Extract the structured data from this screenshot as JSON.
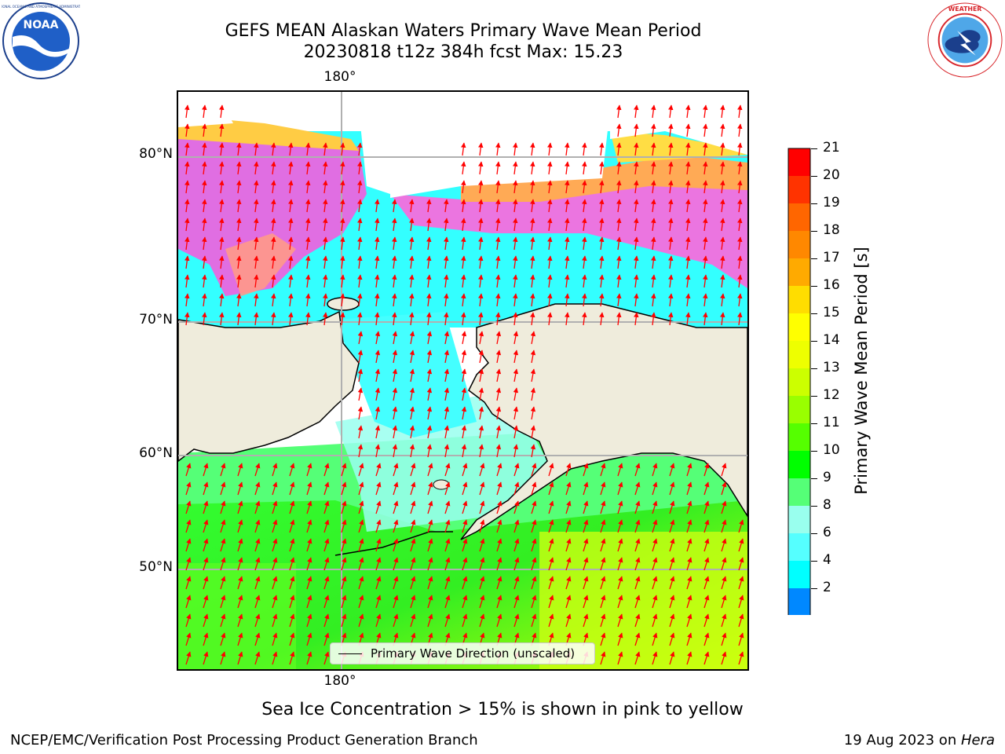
{
  "title": {
    "line1": "GEFS MEAN Alaskan Waters Primary Wave Mean Period",
    "line2": "20230818 t12z 384h fcst   Max: 15.23"
  },
  "logos": {
    "left": "noaa-logo",
    "left_text": "NOAA",
    "right": "nws-logo"
  },
  "map": {
    "lon_label_top": "180°",
    "lon_label_bottom": "180°",
    "lat_labels": [
      "80°N",
      "70°N",
      "60°N",
      "50°N"
    ],
    "legend_label": "Primary Wave Direction (unscaled)",
    "land_color": "#efecdc",
    "arrow_color": "#ff0000"
  },
  "chart_data": {
    "type": "heatmap",
    "field": "Primary Wave Mean Period",
    "units": "s",
    "max": 15.23,
    "colorbar": {
      "label": "Primary Wave Mean Period [s]",
      "ticks": [
        "21",
        "20",
        "19",
        "18",
        "17",
        "16",
        "15",
        "14",
        "13",
        "12",
        "11",
        "10",
        "9",
        "8",
        "6",
        "4",
        "2"
      ],
      "colors": [
        "#ff0000",
        "#ff3300",
        "#ff6600",
        "#ff8800",
        "#ffaa00",
        "#ffdd00",
        "#ffff00",
        "#eeff00",
        "#ccff00",
        "#99ff00",
        "#55ff00",
        "#00ff00",
        "#55ff77",
        "#99ffee",
        "#55ffff",
        "#00ffff",
        "#0088ff"
      ],
      "under_color": "#0000ff"
    },
    "regions": {
      "north_pacific": "10-14",
      "bering_sea": "8-10",
      "arctic_open_water": "4-6",
      "sea_ice": "pink to yellow"
    }
  },
  "note": "Sea Ice Concentration > 15% is shown in pink to yellow",
  "footer": {
    "left": "NCEP/EMC/Verification Post Processing Product Generation Branch",
    "right_prefix": "19 Aug 2023 on ",
    "right_machine": "Hera"
  }
}
